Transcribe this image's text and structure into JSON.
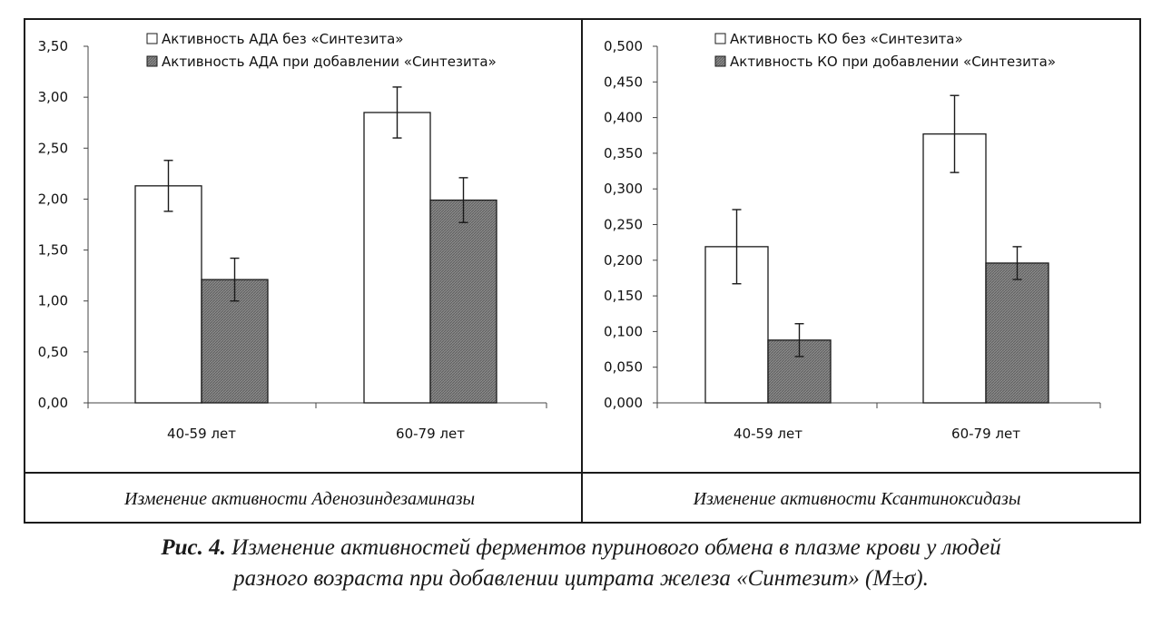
{
  "chart_data": [
    {
      "type": "bar",
      "categories": [
        "40-59 лет",
        "60-79 лет"
      ],
      "series": [
        {
          "name": "Активность АДА без «Синтезита»",
          "values": [
            2.13,
            2.85
          ],
          "errors": [
            0.25,
            0.25
          ],
          "fill": "white"
        },
        {
          "name": "Активность АДА при добавлении «Синтезита»",
          "values": [
            1.21,
            1.99
          ],
          "errors": [
            0.21,
            0.22
          ],
          "fill": "hatched-gray"
        }
      ],
      "ylim": [
        0,
        3.5
      ],
      "yticks": [
        "0,00",
        "0,50",
        "1,00",
        "1,50",
        "2,00",
        "2,50",
        "3,00",
        "3,50"
      ],
      "ytick_values": [
        0,
        0.5,
        1,
        1.5,
        2,
        2.5,
        3,
        3.5
      ],
      "legend_position": "top",
      "caption": "Изменение активности Аденозиндезаминазы"
    },
    {
      "type": "bar",
      "categories": [
        "40-59 лет",
        "60-79 лет"
      ],
      "series": [
        {
          "name": "Активность КО без «Синтезита»",
          "values": [
            0.219,
            0.377
          ],
          "errors": [
            0.052,
            0.054
          ],
          "fill": "white"
        },
        {
          "name": "Активность КО при добавлении «Синтезита»",
          "values": [
            0.088,
            0.196
          ],
          "errors": [
            0.023,
            0.023
          ],
          "fill": "hatched-gray"
        }
      ],
      "ylim": [
        0,
        0.5
      ],
      "yticks": [
        "0,000",
        "0,050",
        "0,100",
        "0,150",
        "0,200",
        "0,250",
        "0,300",
        "0,350",
        "0,400",
        "0,450",
        "0,500"
      ],
      "ytick_values": [
        0,
        0.05,
        0.1,
        0.15,
        0.2,
        0.25,
        0.3,
        0.35,
        0.4,
        0.45,
        0.5
      ],
      "legend_position": "top",
      "caption": "Изменение активности Ксантиноксидазы"
    }
  ],
  "figure_caption": {
    "label": "Рис. 4.",
    "line1": "Изменение активностей ферментов пуринового обмена в плазме крови у людей",
    "line2": "разного возраста при добавлении цитрата железа «Синтезит» (М±σ)."
  },
  "colors": {
    "border": "#1a1a1a",
    "bar_dark": "#7f7f7f",
    "bar_light": "#ffffff"
  }
}
